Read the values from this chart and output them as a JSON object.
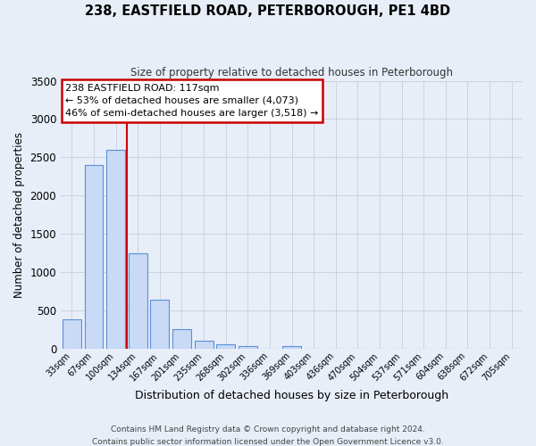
{
  "title": "238, EASTFIELD ROAD, PETERBOROUGH, PE1 4BD",
  "subtitle": "Size of property relative to detached houses in Peterborough",
  "xlabel": "Distribution of detached houses by size in Peterborough",
  "ylabel": "Number of detached properties",
  "footer_line1": "Contains HM Land Registry data © Crown copyright and database right 2024.",
  "footer_line2": "Contains public sector information licensed under the Open Government Licence v3.0.",
  "bar_labels": [
    "33sqm",
    "67sqm",
    "100sqm",
    "134sqm",
    "167sqm",
    "201sqm",
    "235sqm",
    "268sqm",
    "302sqm",
    "336sqm",
    "369sqm",
    "403sqm",
    "436sqm",
    "470sqm",
    "504sqm",
    "537sqm",
    "571sqm",
    "604sqm",
    "638sqm",
    "672sqm",
    "705sqm"
  ],
  "bar_values": [
    390,
    2400,
    2600,
    1250,
    640,
    260,
    100,
    55,
    40,
    0,
    30,
    0,
    0,
    0,
    0,
    0,
    0,
    0,
    0,
    0,
    0
  ],
  "bar_color": "#c8daf5",
  "bar_edge_color": "#5b8fd6",
  "ylim": [
    0,
    3500
  ],
  "yticks": [
    0,
    500,
    1000,
    1500,
    2000,
    2500,
    3000,
    3500
  ],
  "vline_color": "#cc0000",
  "annotation_title": "238 EASTFIELD ROAD: 117sqm",
  "annotation_line1": "← 53% of detached houses are smaller (4,073)",
  "annotation_line2": "46% of semi-detached houses are larger (3,518) →",
  "annotation_box_color": "#ffffff",
  "annotation_box_edge": "#cc0000",
  "bg_color": "#e8eef8",
  "plot_bg_color": "#e8eef8",
  "grid_color": "#c5cedc",
  "title_color": "#000000",
  "subtitle_color": "#333333",
  "footer_color": "#444444"
}
